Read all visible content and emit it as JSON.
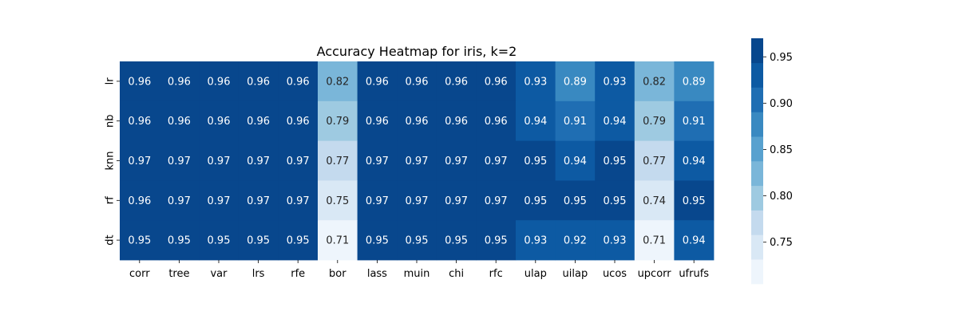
{
  "chart_data": {
    "type": "heatmap",
    "title": "Accuracy Heatmap for iris, k=2",
    "x_categories": [
      "corr",
      "tree",
      "var",
      "lrs",
      "rfe",
      "bor",
      "lass",
      "muin",
      "chi",
      "rfc",
      "ulap",
      "uilap",
      "ucos",
      "upcorr",
      "ufrufs"
    ],
    "y_categories": [
      "lr",
      "nb",
      "knn",
      "rf",
      "dt"
    ],
    "values": [
      [
        0.96,
        0.96,
        0.96,
        0.96,
        0.96,
        0.82,
        0.96,
        0.96,
        0.96,
        0.96,
        0.93,
        0.89,
        0.93,
        0.82,
        0.89
      ],
      [
        0.96,
        0.96,
        0.96,
        0.96,
        0.96,
        0.79,
        0.96,
        0.96,
        0.96,
        0.96,
        0.94,
        0.91,
        0.94,
        0.79,
        0.91
      ],
      [
        0.97,
        0.97,
        0.97,
        0.97,
        0.97,
        0.77,
        0.97,
        0.97,
        0.97,
        0.97,
        0.95,
        0.94,
        0.95,
        0.77,
        0.94
      ],
      [
        0.96,
        0.97,
        0.97,
        0.97,
        0.97,
        0.75,
        0.97,
        0.97,
        0.97,
        0.97,
        0.95,
        0.95,
        0.95,
        0.74,
        0.95
      ],
      [
        0.95,
        0.95,
        0.95,
        0.95,
        0.95,
        0.71,
        0.95,
        0.95,
        0.95,
        0.95,
        0.93,
        0.92,
        0.93,
        0.71,
        0.94
      ]
    ],
    "xlabel": "",
    "ylabel": "",
    "colorbar": {
      "vmin": 0.705,
      "vmax": 0.97,
      "ticks": [
        "0.75",
        "0.80",
        "0.85",
        "0.90",
        "0.95"
      ],
      "tick_values": [
        0.75,
        0.8,
        0.85,
        0.9,
        0.95
      ],
      "levels": 10,
      "colormap": "Blues",
      "palette": [
        "#eef5fc",
        "#d9e8f5",
        "#c4daee",
        "#9ecae1",
        "#7ab6d9",
        "#58a1cf",
        "#3989c1",
        "#1f6eb3",
        "#0d5aa3",
        "#08478d"
      ]
    },
    "annotation_format": "0.2f",
    "text_color_dark": "#262626",
    "text_color_light": "#ffffff"
  }
}
